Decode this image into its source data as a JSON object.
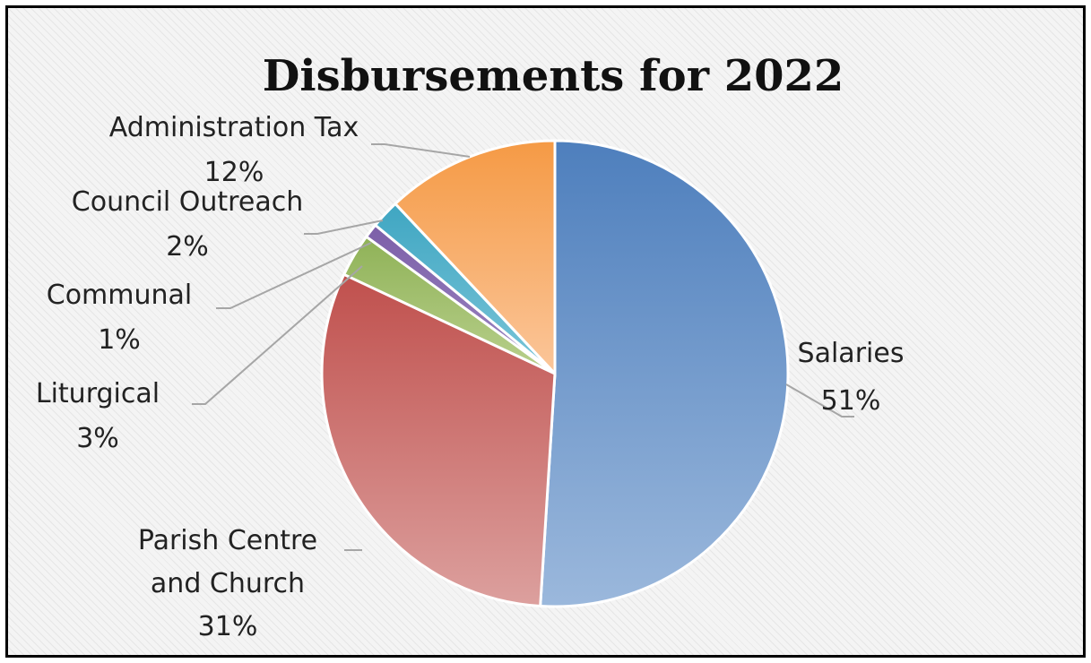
{
  "chart_data": {
    "type": "pie",
    "title": "Disbursements for 2022",
    "start_angle_deg": 0,
    "direction": "clockwise",
    "slices": [
      {
        "name": "Salaries",
        "value": 51,
        "label": "51%",
        "color_top": "#4e7fbd",
        "color_bottom": "#9bb8dc"
      },
      {
        "name": "Parish Centre and Church",
        "value": 31,
        "label": "31%",
        "color_top": "#c0504d",
        "color_bottom": "#dca09e"
      },
      {
        "name": "Liturgical",
        "value": 3,
        "label": "3%",
        "color_top": "#8fb257",
        "color_bottom": "#b9d08d"
      },
      {
        "name": "Communal",
        "value": 1,
        "label": "1%",
        "color_top": "#7c5fa8",
        "color_bottom": "#9c86c2"
      },
      {
        "name": "Council Outreach",
        "value": 2,
        "label": "2%",
        "color_top": "#3fa6c2",
        "color_bottom": "#7cc6d9"
      },
      {
        "name": "Administration Tax",
        "value": 12,
        "label": "12%",
        "color_top": "#f59a45",
        "color_bottom": "#fbc69a"
      }
    ],
    "legend": "none",
    "data_labels": "outside with leader lines"
  }
}
